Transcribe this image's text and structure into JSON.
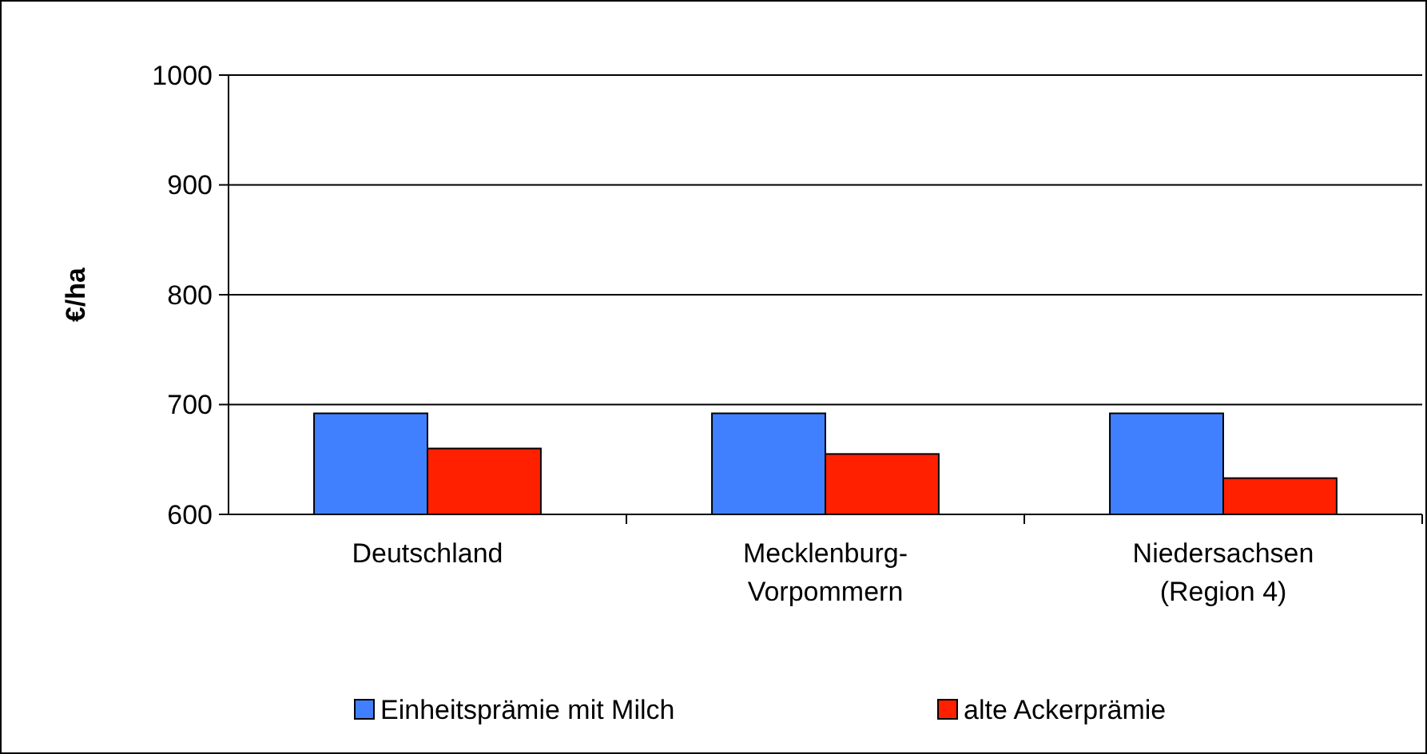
{
  "chart_data": {
    "type": "bar",
    "ylabel": "€/ha",
    "categories": [
      "Deutschland",
      "Mecklenburg-\nVorpommern",
      "Niedersachsen\n(Region 4)"
    ],
    "series": [
      {
        "name": "Einheitsprämie mit Milch",
        "color": "#4080ff",
        "values": [
          692,
          692,
          692
        ]
      },
      {
        "name": "alte Ackerprämie",
        "color": "#ff2000",
        "values": [
          660,
          655,
          633
        ]
      }
    ],
    "ylim": [
      600,
      1000
    ],
    "yticks": [
      600,
      700,
      800,
      900,
      1000
    ],
    "grid": "y",
    "legend": "bottom"
  }
}
